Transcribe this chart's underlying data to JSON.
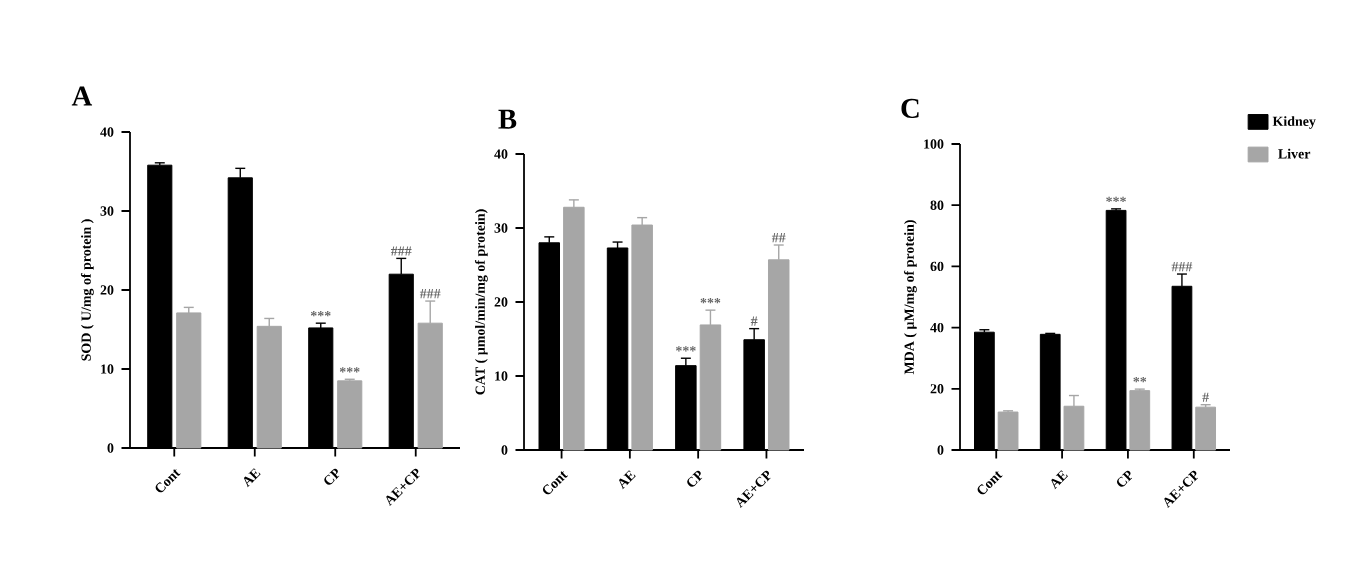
{
  "chart_data": [
    {
      "type": "bar",
      "title": "A",
      "ylabel": "SOD ( U/mg of protein )",
      "categories": [
        "Cont",
        "AE",
        "CP",
        "AE+CP"
      ],
      "series": [
        {
          "color": "#000000",
          "values": [
            35.8,
            34.2,
            15.2,
            22.0
          ],
          "errors": [
            0.3,
            1.2,
            0.6,
            2.0
          ]
        },
        {
          "color": "#a6a6a6",
          "values": [
            17.1,
            15.4,
            8.5,
            15.8
          ],
          "errors": [
            0.7,
            1.0,
            0.2,
            2.8
          ]
        }
      ],
      "ylim": [
        0,
        40
      ],
      "yticks": [
        0,
        10,
        20,
        30,
        40
      ],
      "annotations": [
        {
          "text": "***",
          "x": "CP",
          "y": 15.8
        },
        {
          "text": "***",
          "x": "CP",
          "y": 8.7
        },
        {
          "text": "###",
          "x": "AE+CP",
          "y": 24.0
        },
        {
          "text": "###",
          "x": "AE+CP",
          "y": 18.6
        }
      ]
    },
    {
      "type": "bar",
      "title": "B",
      "ylabel": "CAT ( µmol/min/mg of protein)",
      "categories": [
        "Cont",
        "AE",
        "CP",
        "AE+CP"
      ],
      "series": [
        {
          "color": "#000000",
          "values": [
            28.0,
            27.3,
            11.4,
            14.9
          ],
          "errors": [
            0.8,
            0.8,
            1.0,
            1.5
          ]
        },
        {
          "color": "#a6a6a6",
          "values": [
            32.8,
            30.4,
            16.9,
            25.7
          ],
          "errors": [
            1.0,
            1.0,
            2.0,
            2.0
          ]
        }
      ],
      "ylim": [
        0,
        40
      ],
      "yticks": [
        0,
        10,
        20,
        30,
        40
      ],
      "annotations": [
        {
          "text": "***",
          "x": "CP",
          "y": 12.4
        },
        {
          "text": "***",
          "x": "CP",
          "y": 18.9
        },
        {
          "text": "#",
          "x": "AE+CP",
          "y": 16.4
        },
        {
          "text": "##",
          "x": "AE+CP",
          "y": 27.7
        }
      ]
    },
    {
      "type": "bar",
      "title": "C",
      "ylabel": "MDA ( µM/mg of protein)",
      "categories": [
        "Cont",
        "AE",
        "CP",
        "AE+CP"
      ],
      "series": [
        {
          "name": "Kidney",
          "color": "#000000",
          "values": [
            38.5,
            37.8,
            78.3,
            53.5
          ],
          "errors": [
            0.8,
            0.3,
            0.5,
            4.0
          ]
        },
        {
          "name": "Liver",
          "color": "#a6a6a6",
          "values": [
            12.4,
            14.3,
            19.4,
            14.0
          ],
          "errors": [
            0.4,
            3.5,
            0.5,
            0.8
          ]
        }
      ],
      "ylim": [
        0,
        100
      ],
      "yticks": [
        0,
        20,
        40,
        60,
        80,
        100
      ],
      "legend": "top right",
      "annotations": [
        {
          "text": "***",
          "x": "CP",
          "y": 78.8
        },
        {
          "text": "**",
          "x": "CP",
          "y": 19.9
        },
        {
          "text": "###",
          "x": "AE+CP",
          "y": 57.5
        },
        {
          "text": "#",
          "x": "AE+CP",
          "y": 14.8
        }
      ]
    }
  ]
}
